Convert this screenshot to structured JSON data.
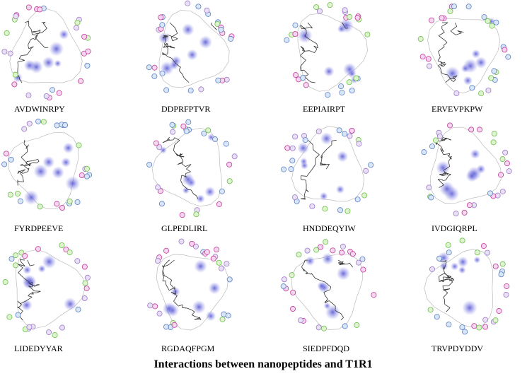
{
  "panels": [
    "AVDWINRPY",
    "DDPRFPTVR",
    "EEPIAIRPT",
    "ERVEVPKPW",
    "FYRDPEEVE",
    "GLPEDLIRL",
    "HNDDEQYIW",
    "IVDGIQRPL",
    "LIDEDYYAR",
    "RGDAQFPGM",
    "SIEDPFDQD",
    "TRVPDYDDV"
  ],
  "caption": "Interactions between nanopeptides and T1R1"
}
